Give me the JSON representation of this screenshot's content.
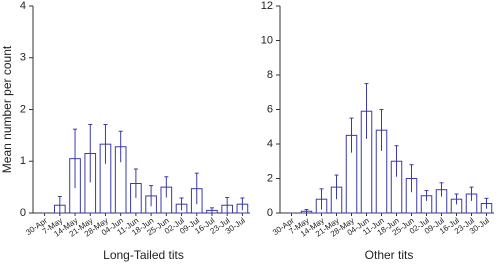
{
  "chart_data": [
    {
      "type": "bar",
      "title": "Long-Tailed tits",
      "ylabel": "Mean number per count",
      "categories": [
        "30-Apr",
        "7-May",
        "14-May",
        "21-May",
        "28-May",
        "04-Jun",
        "11-Jun",
        "18-Jun",
        "25-Jun",
        "02-Jul",
        "09-Jul",
        "16-Jul",
        "23-Jul",
        "30-Jul"
      ],
      "values": [
        0,
        0.15,
        1.05,
        1.15,
        1.33,
        1.28,
        0.57,
        0.33,
        0.5,
        0.17,
        0.47,
        0.05,
        0.15,
        0.17
      ],
      "errors": [
        0,
        0.17,
        0.57,
        0.56,
        0.38,
        0.3,
        0.28,
        0.2,
        0.2,
        0.12,
        0.3,
        0.05,
        0.15,
        0.12
      ],
      "color": "#3a3aa8",
      "ylim": [
        0,
        4
      ],
      "yticks": [
        0,
        1,
        2,
        3,
        4
      ]
    },
    {
      "type": "bar",
      "title": "Other tits",
      "categories": [
        "30-Apr",
        "7-May",
        "14-May",
        "21-May",
        "28-May",
        "04-Jun",
        "11-Jun",
        "18-Jun",
        "25-Jun",
        "02-Jul",
        "09-Jul",
        "16-Jul",
        "23-Jul",
        "30-Jul"
      ],
      "values": [
        0,
        0.1,
        0.8,
        1.5,
        4.5,
        5.9,
        4.8,
        3.0,
        2.0,
        1.0,
        1.35,
        0.8,
        1.1,
        0.55
      ],
      "errors": [
        0,
        0.1,
        0.6,
        0.7,
        1.0,
        1.6,
        1.2,
        0.9,
        0.8,
        0.3,
        0.4,
        0.3,
        0.4,
        0.3
      ],
      "color": "#3a3aa8",
      "ylim": [
        0,
        12
      ],
      "yticks": [
        0,
        2,
        4,
        6,
        8,
        10,
        12
      ]
    }
  ]
}
